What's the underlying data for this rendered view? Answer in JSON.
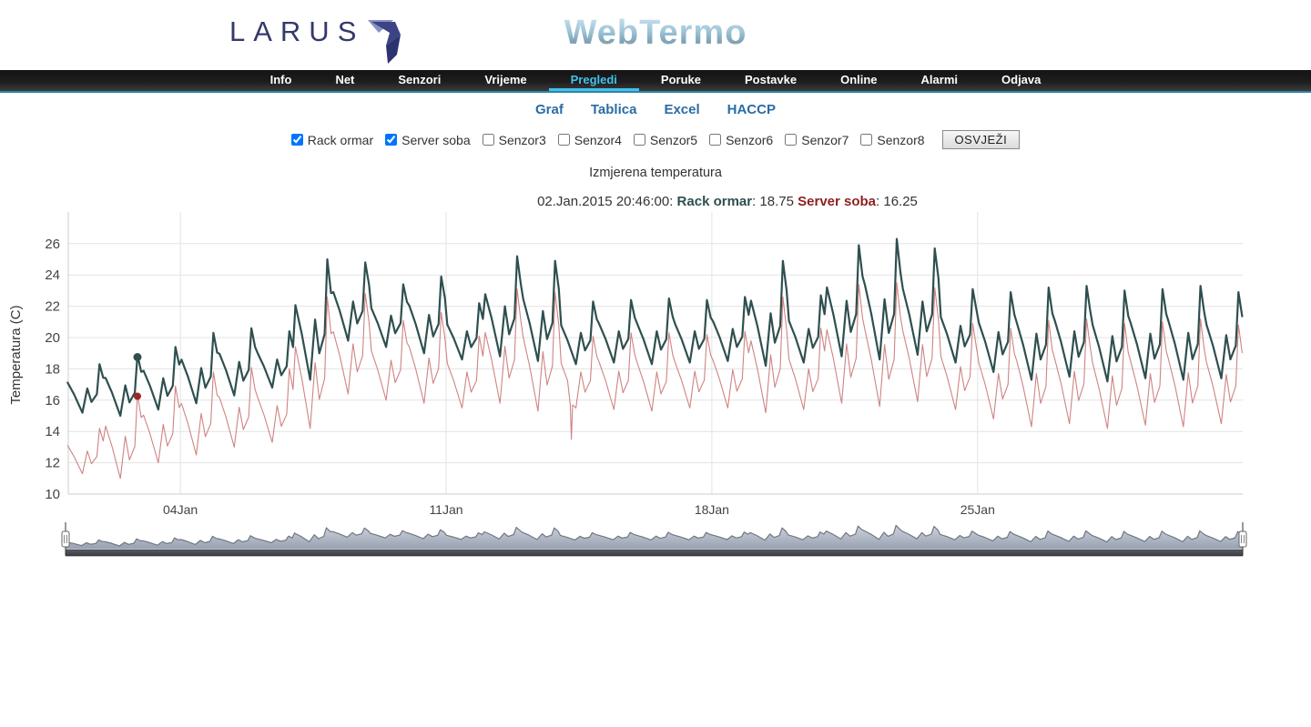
{
  "header": {
    "logo_text": "LARUS",
    "app_title": "WebTermo"
  },
  "navbar": {
    "active_color": "#41c2ee",
    "items": [
      {
        "label": "Info",
        "active": false
      },
      {
        "label": "Net",
        "active": false
      },
      {
        "label": "Senzori",
        "active": false
      },
      {
        "label": "Vrijeme",
        "active": false
      },
      {
        "label": "Pregledi",
        "active": true
      },
      {
        "label": "Poruke",
        "active": false
      },
      {
        "label": "Postavke",
        "active": false
      },
      {
        "label": "Online",
        "active": false
      },
      {
        "label": "Alarmi",
        "active": false
      },
      {
        "label": "Odjava",
        "active": false
      }
    ]
  },
  "subnav": {
    "items": [
      "Graf",
      "Tablica",
      "Excel",
      "HACCP"
    ]
  },
  "controls": {
    "checkboxes": [
      {
        "label": "Rack ormar",
        "checked": true
      },
      {
        "label": "Server soba",
        "checked": true
      },
      {
        "label": "Senzor3",
        "checked": false
      },
      {
        "label": "Senzor4",
        "checked": false
      },
      {
        "label": "Senzor5",
        "checked": false
      },
      {
        "label": "Senzor6",
        "checked": false
      },
      {
        "label": "Senzor7",
        "checked": false
      },
      {
        "label": "Senzor8",
        "checked": false
      }
    ],
    "refresh_label": "OSVJEŽI"
  },
  "chart_data": {
    "type": "line",
    "title": "Izmjerena temperatura",
    "readout": {
      "prefix": "02.Jan.2015 20:46:00: ",
      "s1": "Rack ormar",
      "v1": ": 18.75 ",
      "s2": "Server soba",
      "v2": ": 16.25"
    },
    "ylabel": "Temperatura (C)",
    "yticks": [
      10,
      12,
      14,
      16,
      18,
      20,
      22,
      24,
      26
    ],
    "ylim": [
      10,
      28
    ],
    "x_range_days": 31,
    "start_date": "01.Jan.2015",
    "xticks": [
      {
        "label": "04Jan",
        "day": 3
      },
      {
        "label": "11Jan",
        "day": 10
      },
      {
        "label": "18Jan",
        "day": 17
      },
      {
        "label": "25Jan",
        "day": 24
      }
    ],
    "grid_color": "#e3e3e3",
    "axis_color": "#cccccc",
    "tick_label_color": "#444444",
    "series": [
      {
        "name": "Rack ormar",
        "color": "#2f4f4f",
        "line_width": 2.2,
        "daily_min_max": [
          [
            15.2,
            18.3
          ],
          [
            15.0,
            18.9
          ],
          [
            15.4,
            19.4
          ],
          [
            15.8,
            20.3
          ],
          [
            16.3,
            20.6
          ],
          [
            16.8,
            20.4
          ],
          [
            17.3,
            25.0
          ],
          [
            19.8,
            24.8
          ],
          [
            19.4,
            23.4
          ],
          [
            19.0,
            23.9
          ],
          [
            18.6,
            22.2
          ],
          [
            18.8,
            25.2
          ],
          [
            18.5,
            24.9
          ],
          [
            18.3,
            22.3
          ],
          [
            18.4,
            22.4
          ],
          [
            18.3,
            22.5
          ],
          [
            18.4,
            22.4
          ],
          [
            18.5,
            22.6
          ],
          [
            18.2,
            24.9
          ],
          [
            18.4,
            22.7
          ],
          [
            18.8,
            25.9
          ],
          [
            18.6,
            26.3
          ],
          [
            18.9,
            25.7
          ],
          [
            18.4,
            23.1
          ],
          [
            17.8,
            22.9
          ],
          [
            17.3,
            23.2
          ],
          [
            17.5,
            23.3
          ],
          [
            17.2,
            23.0
          ],
          [
            17.4,
            23.1
          ],
          [
            17.3,
            23.3
          ],
          [
            17.4,
            22.9
          ]
        ]
      },
      {
        "name": "Server soba",
        "color": "#cf8383",
        "line_width": 1.1,
        "daily_min_max": [
          [
            11.3,
            14.2
          ],
          [
            11.0,
            16.4
          ],
          [
            12.0,
            16.9
          ],
          [
            12.5,
            17.8
          ],
          [
            13.0,
            18.1
          ],
          [
            13.3,
            18.0
          ],
          [
            14.2,
            22.6
          ],
          [
            16.4,
            22.8
          ],
          [
            16.0,
            21.1
          ],
          [
            15.8,
            21.6
          ],
          [
            15.5,
            20.1
          ],
          [
            15.8,
            23.1
          ],
          [
            15.3,
            22.9
          ],
          [
            15.5,
            20.1
          ],
          [
            15.4,
            20.3
          ],
          [
            15.3,
            20.3
          ],
          [
            15.5,
            20.2
          ],
          [
            15.5,
            20.4
          ],
          [
            15.2,
            22.6
          ],
          [
            15.4,
            20.6
          ],
          [
            15.8,
            23.4
          ],
          [
            15.6,
            23.5
          ],
          [
            15.9,
            23.2
          ],
          [
            15.4,
            20.9
          ],
          [
            14.8,
            20.6
          ],
          [
            14.3,
            21.1
          ],
          [
            14.5,
            21.2
          ],
          [
            14.2,
            20.9
          ],
          [
            14.4,
            21.0
          ],
          [
            14.3,
            21.2
          ],
          [
            14.5,
            20.8
          ]
        ],
        "anomalies": [
          {
            "day": 13.3,
            "value": 13.5
          }
        ]
      }
    ],
    "hover_point": {
      "timestamp": "02.Jan.2015 20:46:00",
      "day": 1.87,
      "values": [
        18.75,
        16.25
      ],
      "marker_colors": [
        "#2f4f4f",
        "#a02626"
      ]
    },
    "navigator": {
      "stroke": "#6f7780",
      "fill_top": "#ced3dc",
      "fill_bottom": "#98a1b3",
      "bar_top": "#5b5b63",
      "bar_bottom": "#3a3a42",
      "handle_fill": "#ffffff",
      "handle_stroke": "#666666",
      "handles_at_days": [
        0,
        31
      ]
    }
  }
}
